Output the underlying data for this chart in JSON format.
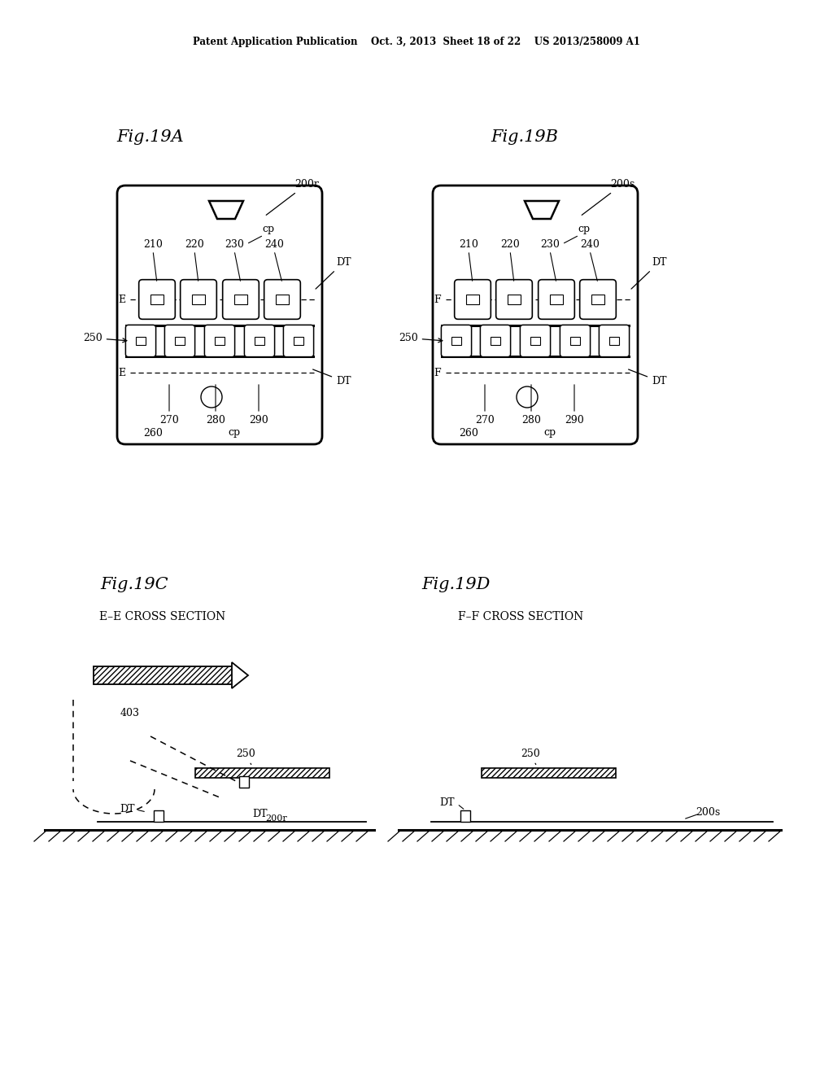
{
  "bg_color": "#ffffff",
  "header": "Patent Application Publication    Oct. 3, 2013  Sheet 18 of 22    US 2013/258009 A1",
  "fig19A": "Fig.19A",
  "fig19B": "Fig.19B",
  "fig19C": "Fig.19C",
  "fig19D": "Fig.19D",
  "fig19C_sub": "E–E CROSS SECTION",
  "fig19D_sub": "F–F CROSS SECTION",
  "num_labels": [
    "210",
    "220",
    "230",
    "240"
  ],
  "bot_labels": [
    "270",
    "280",
    "290"
  ],
  "label_200r": "200r",
  "label_200s": "200s",
  "label_cp": "cp",
  "label_DT": "DT",
  "label_E": "E",
  "label_F": "F",
  "label_250": "250",
  "label_260": "260",
  "label_403": "403"
}
